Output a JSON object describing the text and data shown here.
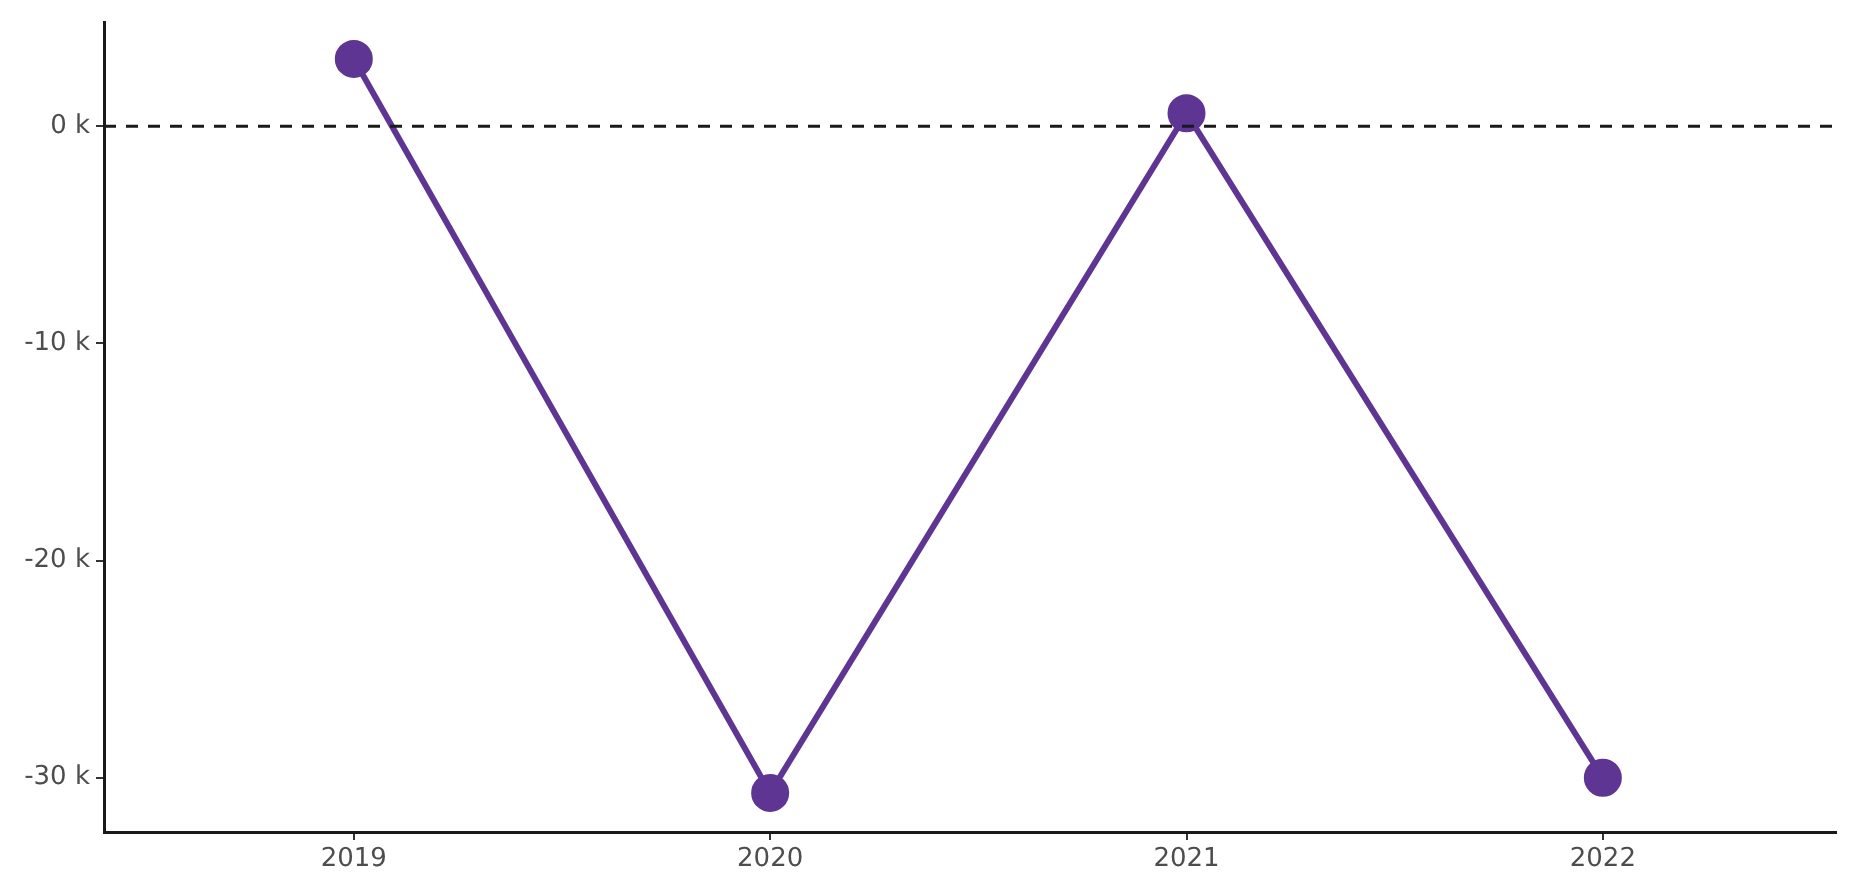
{
  "chart_data": {
    "type": "line",
    "x": [
      2019,
      2020,
      2021,
      2022
    ],
    "series": [
      {
        "color": "#5e3592",
        "values": [
          3100,
          -30700,
          600,
          -30000
        ]
      }
    ],
    "xlim": [
      2018.4,
      2022.56
    ],
    "xticks": [
      2019,
      2020,
      2021,
      2022
    ],
    "ylim": [
      -32500,
      4800
    ],
    "yticks": [
      {
        "value": 0,
        "label": "0 k"
      },
      {
        "value": -10000,
        "label": "-10 k"
      },
      {
        "value": -20000,
        "label": "-20 k"
      },
      {
        "value": -30000,
        "label": "-30 k"
      }
    ],
    "ref_lines": [
      {
        "axis": "y",
        "value": 0,
        "color": "#1a1a1a",
        "line_style": "dashed"
      }
    ],
    "grid": false,
    "legend": false,
    "marker": "circle",
    "line_style": "solid"
  }
}
